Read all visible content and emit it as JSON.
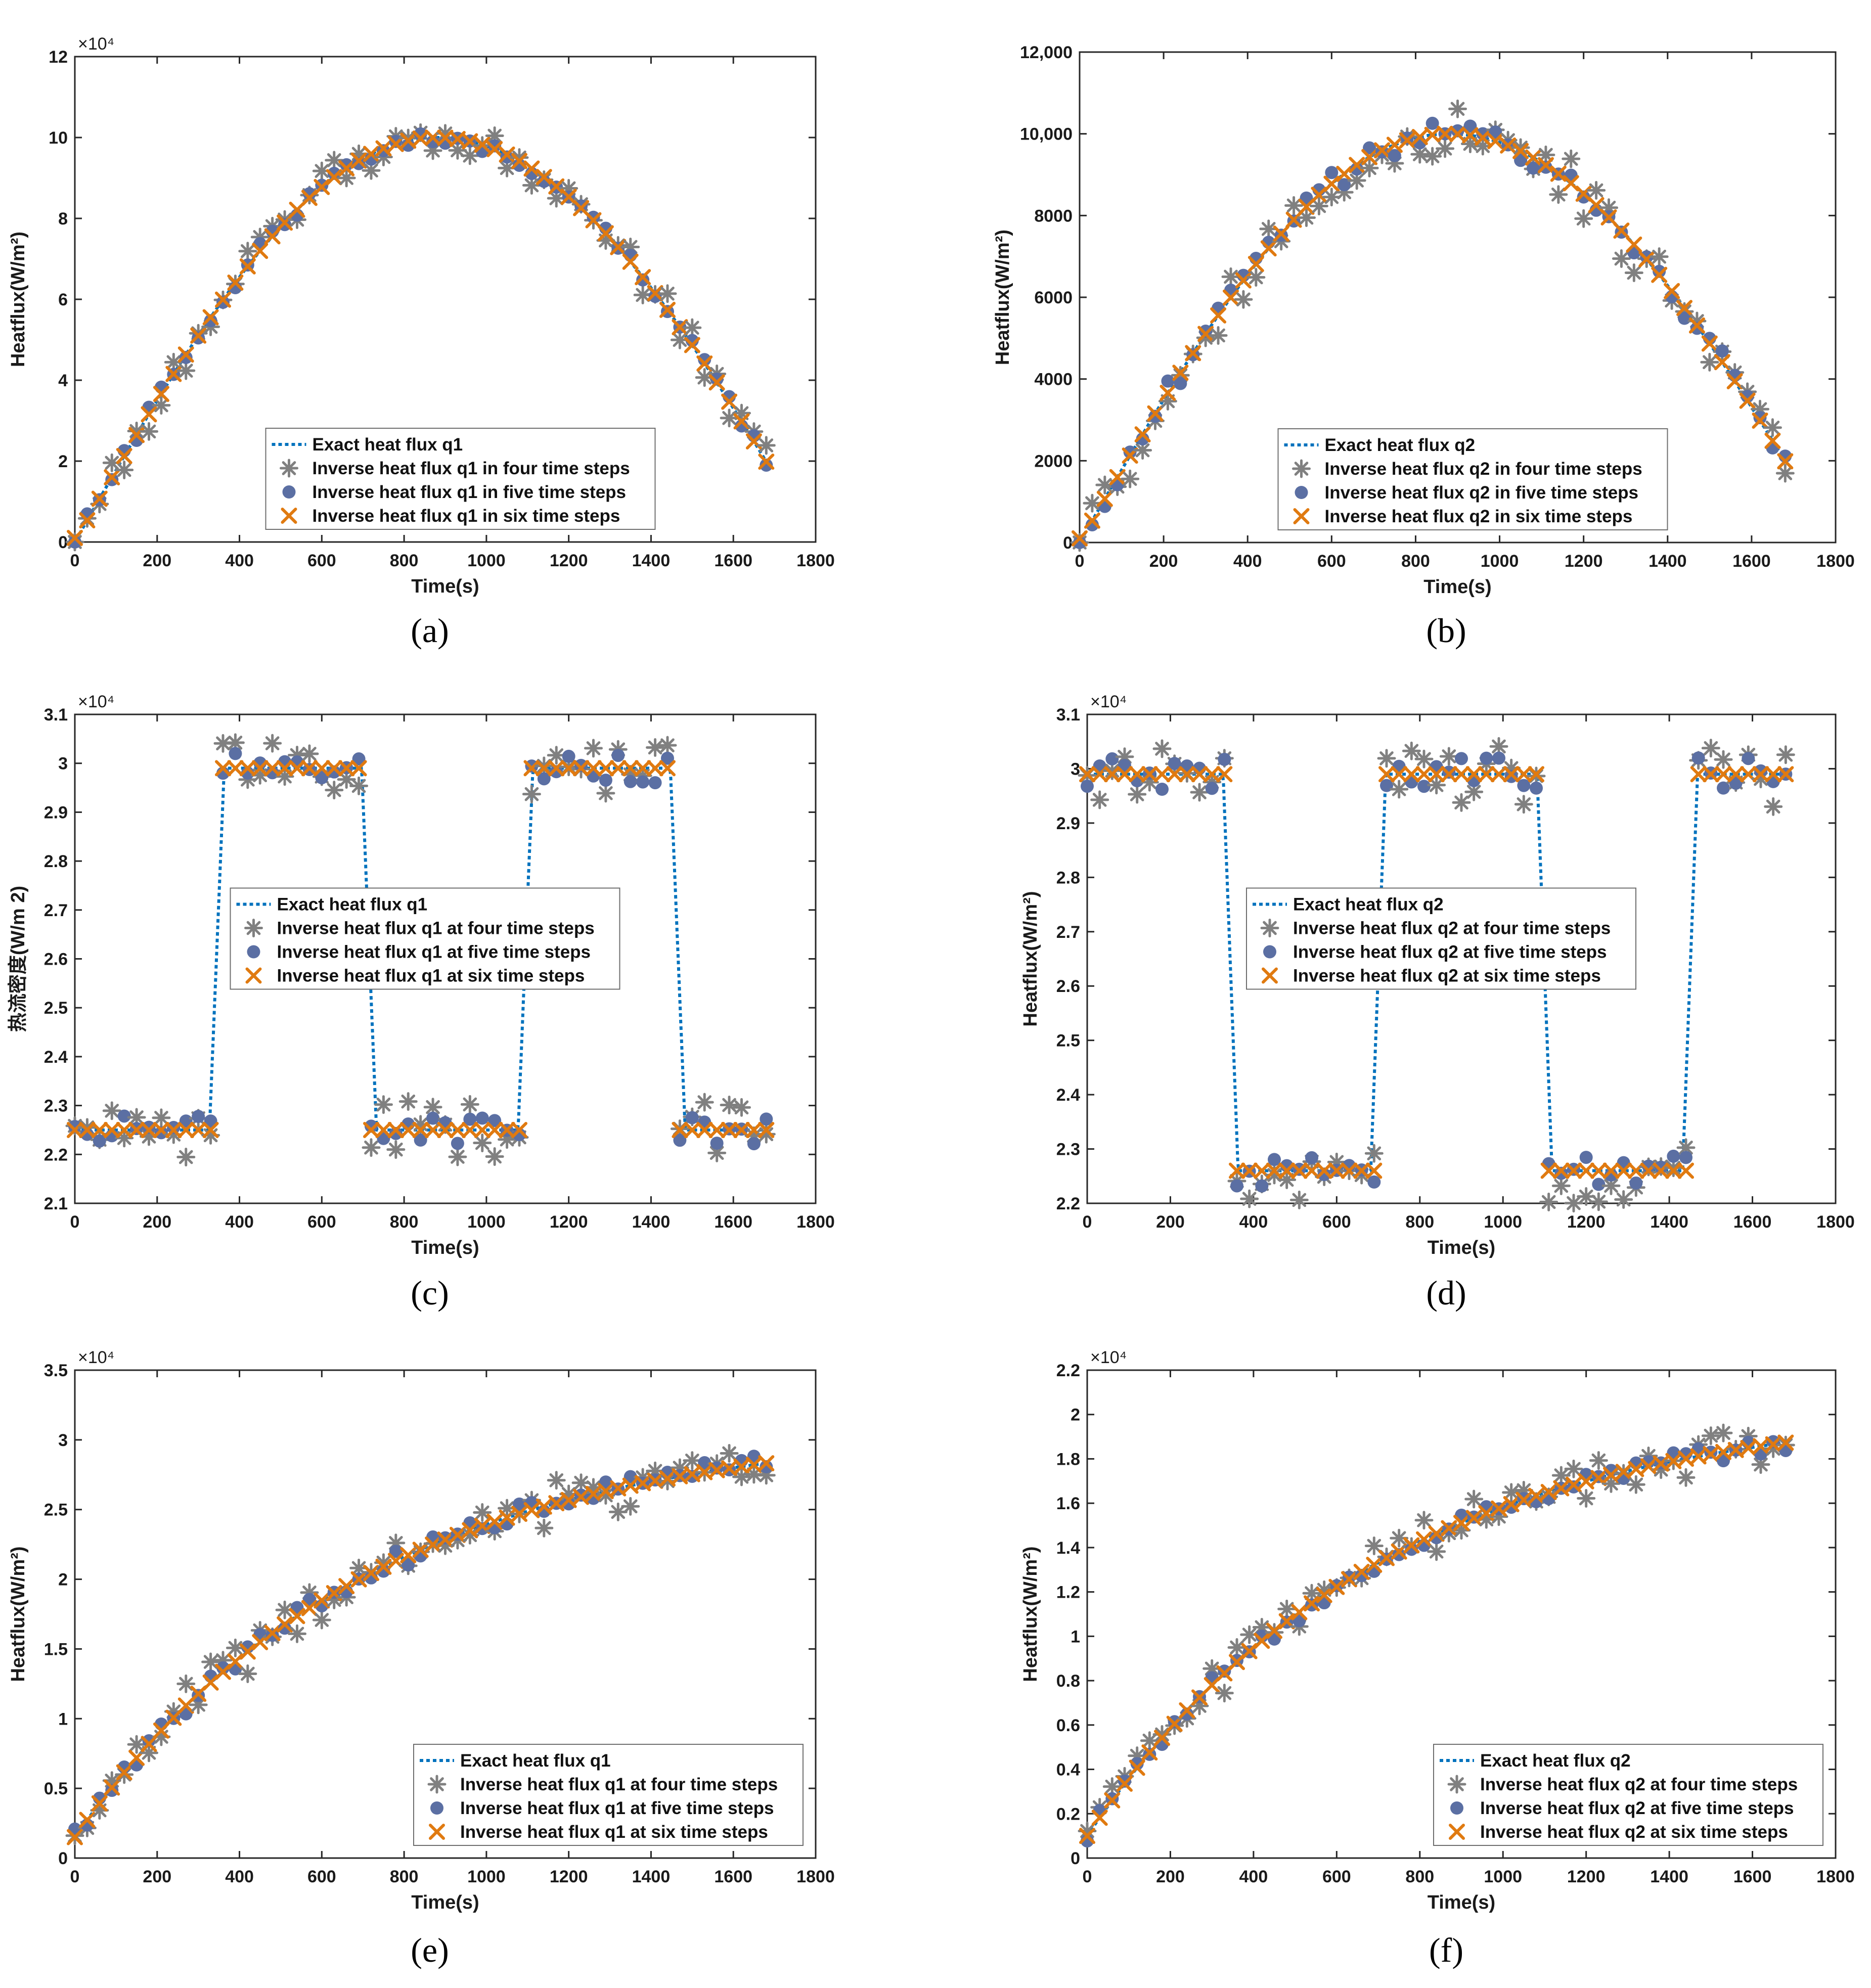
{
  "colors": {
    "exact": "#0072BD",
    "four": "#808080",
    "five": "#5B6FA3",
    "six": "#E07A10",
    "axis": "#262626"
  },
  "chart_data": [
    {
      "id": "a",
      "caption": "(a)",
      "type": "scatter",
      "xlabel": "Time(s)",
      "ylabel": "Heatflux(W/m²)",
      "ylabel_sup": true,
      "multiplier": "×10⁴",
      "scale": 10000,
      "xlim": [
        0,
        1800
      ],
      "ylim": [
        0,
        12
      ],
      "xticks": [
        0,
        200,
        400,
        600,
        800,
        1000,
        1200,
        1400,
        1600,
        1800
      ],
      "yticks": [
        0,
        2,
        4,
        6,
        8,
        10,
        12
      ],
      "ytick_labels": [
        "0",
        "2",
        "4",
        "6",
        "8",
        "10",
        "12"
      ],
      "legend_pos": "bottom-center",
      "legend": [
        "Exact heat flux q1",
        "Inverse heat flux q1 in four time steps",
        "Inverse heat flux q1 in five time steps",
        "Inverse heat flux q1 in six time steps"
      ],
      "profile": "sine",
      "base": 0.0,
      "peak": 10.0,
      "tpeak": 880,
      "noise": {
        "four": 0.45,
        "five": 0.18,
        "six": 0.0
      }
    },
    {
      "id": "b",
      "caption": "(b)",
      "type": "scatter",
      "xlabel": "Time(s)",
      "ylabel": "Heatflux(W/m²)",
      "ylabel_sup": true,
      "multiplier": "",
      "scale": 1,
      "xlim": [
        0,
        1800
      ],
      "ylim": [
        0,
        12000
      ],
      "xticks": [
        0,
        200,
        400,
        600,
        800,
        1000,
        1200,
        1400,
        1600,
        1800
      ],
      "yticks": [
        0,
        2000,
        4000,
        6000,
        8000,
        10000,
        12000
      ],
      "ytick_labels": [
        "0",
        "2000",
        "4000",
        "6000",
        "8000",
        "10,000",
        "12,000"
      ],
      "legend_pos": "bottom-center",
      "legend": [
        "Exact heat flux q2",
        "Inverse heat flux q2 in four time steps",
        "Inverse heat flux q2 in five time steps",
        "Inverse heat flux q2 in six time steps"
      ],
      "profile": "sine",
      "base": 0,
      "peak": 10000,
      "tpeak": 880,
      "noise": {
        "four": 700,
        "five": 300,
        "six": 0
      }
    },
    {
      "id": "c",
      "caption": "(c)",
      "type": "scatter",
      "xlabel": "Time(s)",
      "ylabel": "热流密度(W/m 2)",
      "ylabel_sup": false,
      "multiplier": "×10⁴",
      "scale": 10000,
      "xlim": [
        0,
        1800
      ],
      "ylim": [
        2.1,
        3.1
      ],
      "xticks": [
        0,
        200,
        400,
        600,
        800,
        1000,
        1200,
        1400,
        1600,
        1800
      ],
      "yticks": [
        2.1,
        2.2,
        2.3,
        2.4,
        2.5,
        2.6,
        2.7,
        2.8,
        2.9,
        3.0,
        3.1
      ],
      "ytick_labels": [
        "2.1",
        "2.2",
        "2.3",
        "2.4",
        "2.5",
        "2.6",
        "2.7",
        "2.8",
        "2.9",
        "3",
        "3.1"
      ],
      "legend_pos": "center",
      "legend": [
        "Exact heat flux q1",
        "Inverse heat flux q1 at four time steps",
        "Inverse heat flux q1 at five time steps",
        "Inverse heat flux q1 at six time steps"
      ],
      "profile": "square",
      "low": 2.25,
      "high": 2.99,
      "edges": [
        345,
        715,
        1095,
        1465
      ],
      "start_low": true,
      "noise": {
        "four": 0.06,
        "five": 0.03,
        "six": 0.0
      }
    },
    {
      "id": "d",
      "caption": "(d)",
      "type": "scatter",
      "xlabel": "Time(s)",
      "ylabel": "Heatflux(W/m²)",
      "ylabel_sup": true,
      "multiplier": "×10⁴",
      "scale": 10000,
      "xlim": [
        0,
        1800
      ],
      "ylim": [
        2.2,
        3.1
      ],
      "xticks": [
        0,
        200,
        400,
        600,
        800,
        1000,
        1200,
        1400,
        1600,
        1800
      ],
      "yticks": [
        2.2,
        2.3,
        2.4,
        2.5,
        2.6,
        2.7,
        2.8,
        2.9,
        3.0,
        3.1
      ],
      "ytick_labels": [
        "2.2",
        "2.3",
        "2.4",
        "2.5",
        "2.6",
        "2.7",
        "2.8",
        "2.9",
        "3",
        "3.1"
      ],
      "legend_pos": "center",
      "legend": [
        "Exact heat flux q2",
        "Inverse heat flux q2 at four time steps",
        "Inverse heat flux q2 at five time steps",
        "Inverse heat flux q2 at six time steps"
      ],
      "profile": "square",
      "low": 2.26,
      "high": 2.99,
      "edges": [
        345,
        700,
        1100,
        1450
      ],
      "start_low": false,
      "noise": {
        "four": 0.06,
        "five": 0.03,
        "six": 0.0
      }
    },
    {
      "id": "e",
      "caption": "(e)",
      "type": "scatter",
      "xlabel": "Time(s)",
      "ylabel": "Heatflux(W/m²)",
      "ylabel_sup": true,
      "multiplier": "×10⁴",
      "scale": 10000,
      "xlim": [
        0,
        1800
      ],
      "ylim": [
        0,
        3.5
      ],
      "xticks": [
        0,
        200,
        400,
        600,
        800,
        1000,
        1200,
        1400,
        1600,
        1800
      ],
      "yticks": [
        0,
        0.5,
        1.0,
        1.5,
        2.0,
        2.5,
        3.0,
        3.5
      ],
      "ytick_labels": [
        "0",
        "0.5",
        "1",
        "1.5",
        "2",
        "2.5",
        "3",
        "3.5"
      ],
      "legend_pos": "bottom-right",
      "legend": [
        "Exact heat flux q1",
        "Inverse heat flux q1 at four time steps",
        "Inverse heat flux q1 at five time steps",
        "Inverse heat flux q1 at six time steps"
      ],
      "profile": "exp",
      "y0": 0.15,
      "yinf": 3.1,
      "tau": 700,
      "noise": {
        "four": 0.17,
        "five": 0.07,
        "six": 0.0
      }
    },
    {
      "id": "f",
      "caption": "(f)",
      "type": "scatter",
      "xlabel": "Time(s)",
      "ylabel": "Heatflux(W/m²)",
      "ylabel_sup": true,
      "multiplier": "×10⁴",
      "scale": 10000,
      "xlim": [
        0,
        1800
      ],
      "ylim": [
        0,
        2.2
      ],
      "xticks": [
        0,
        200,
        400,
        600,
        800,
        1000,
        1200,
        1400,
        1600,
        1800
      ],
      "yticks": [
        0,
        0.2,
        0.4,
        0.6,
        0.8,
        1.0,
        1.2,
        1.4,
        1.6,
        1.8,
        2.0,
        2.2
      ],
      "ytick_labels": [
        "0",
        "0.2",
        "0.4",
        "0.6",
        "0.8",
        "1",
        "1.2",
        "1.4",
        "1.6",
        "1.8",
        "2",
        "2.2"
      ],
      "legend_pos": "bottom-right",
      "legend": [
        "Exact heat flux q2",
        "Inverse heat flux q2 at four time steps",
        "Inverse heat flux q2 at five time steps",
        "Inverse heat flux q2 at six time steps"
      ],
      "profile": "exp",
      "y0": 0.1,
      "yinf": 2.05,
      "tau": 700,
      "noise": {
        "four": 0.09,
        "five": 0.04,
        "six": 0.0
      }
    }
  ]
}
